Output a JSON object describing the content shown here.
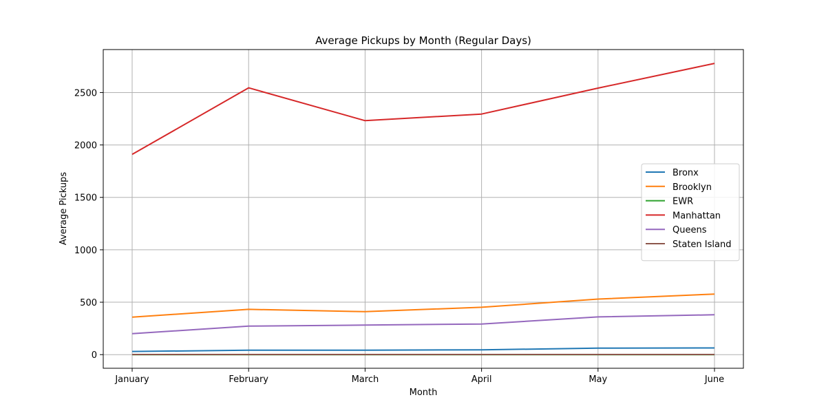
{
  "chart_data": {
    "type": "line",
    "title": "Average Pickups by Month (Regular Days)",
    "xlabel": "Month",
    "ylabel": "Average Pickups",
    "categories": [
      "January",
      "February",
      "March",
      "April",
      "May",
      "June"
    ],
    "ylim": [
      -130,
      2910
    ],
    "yticks": [
      0,
      500,
      1000,
      1500,
      2000,
      2500
    ],
    "grid": true,
    "legend_position": "center-right",
    "series": [
      {
        "name": "Bronx",
        "color": "#1f77b4",
        "values": [
          30,
          42,
          42,
          46,
          62,
          64
        ]
      },
      {
        "name": "Brooklyn",
        "color": "#ff7f0e",
        "values": [
          357,
          432,
          410,
          452,
          530,
          578
        ]
      },
      {
        "name": "EWR",
        "color": "#2ca02c",
        "values": [
          0,
          0,
          0,
          0,
          0,
          0
        ]
      },
      {
        "name": "Manhattan",
        "color": "#d62728",
        "values": [
          1910,
          2545,
          2232,
          2295,
          2542,
          2778
        ]
      },
      {
        "name": "Queens",
        "color": "#9467bd",
        "values": [
          200,
          272,
          282,
          292,
          360,
          380
        ]
      },
      {
        "name": "Staten Island",
        "color": "#8c564b",
        "values": [
          1,
          1,
          1,
          1,
          1,
          1
        ]
      }
    ]
  }
}
